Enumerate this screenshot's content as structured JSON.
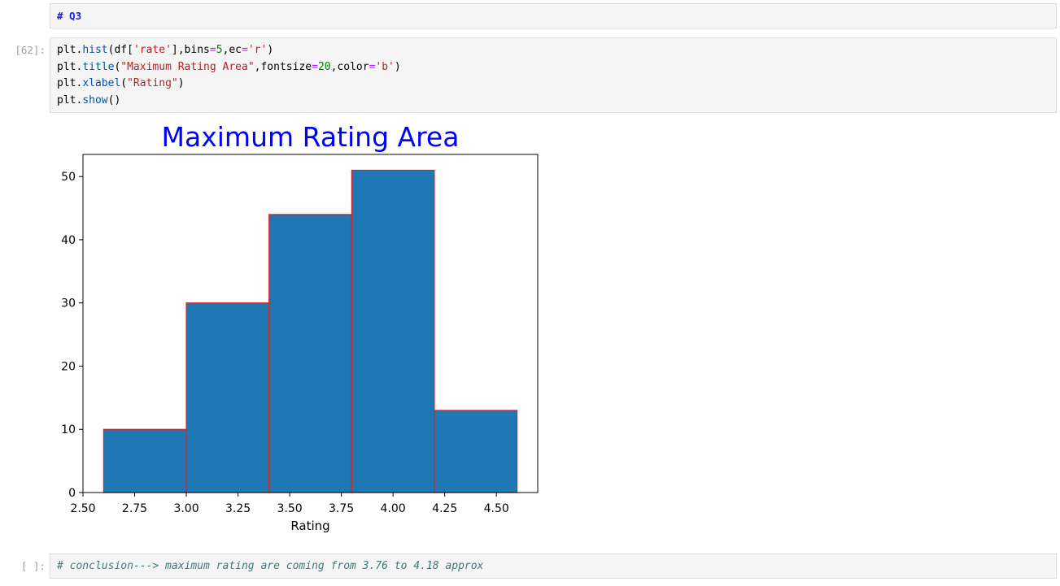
{
  "markdown_cell": {
    "text": "# Q3"
  },
  "code_cell": {
    "prompt": "[62]:",
    "lines": [
      [
        {
          "t": "plt."
        },
        {
          "t": "hist",
          "c": "fn"
        },
        {
          "t": "(df["
        },
        {
          "t": "'rate'",
          "c": "str"
        },
        {
          "t": "],bins"
        },
        {
          "t": "=",
          "c": "op"
        },
        {
          "t": "5",
          "c": "num"
        },
        {
          "t": ",ec"
        },
        {
          "t": "=",
          "c": "op"
        },
        {
          "t": "'r'",
          "c": "str"
        },
        {
          "t": ")"
        }
      ],
      [
        {
          "t": "plt."
        },
        {
          "t": "title",
          "c": "fn"
        },
        {
          "t": "("
        },
        {
          "t": "\"Maximum Rating Area\"",
          "c": "str"
        },
        {
          "t": ",fontsize"
        },
        {
          "t": "=",
          "c": "op"
        },
        {
          "t": "20",
          "c": "num"
        },
        {
          "t": ",color"
        },
        {
          "t": "=",
          "c": "op"
        },
        {
          "t": "'b'",
          "c": "str"
        },
        {
          "t": ")"
        }
      ],
      [
        {
          "t": "plt."
        },
        {
          "t": "xlabel",
          "c": "fn"
        },
        {
          "t": "("
        },
        {
          "t": "\"Rating\"",
          "c": "str"
        },
        {
          "t": ")"
        }
      ],
      [
        {
          "t": "plt."
        },
        {
          "t": "show",
          "c": "fn"
        },
        {
          "t": "()"
        }
      ]
    ]
  },
  "chart_data": {
    "type": "bar",
    "title": "Maximum Rating Area",
    "title_color": "#0000ff",
    "xlabel": "Rating",
    "ylabel": "",
    "bins": [
      [
        2.6,
        3.0
      ],
      [
        3.0,
        3.4
      ],
      [
        3.4,
        3.8
      ],
      [
        3.8,
        4.2
      ],
      [
        4.2,
        4.6
      ]
    ],
    "values": [
      10,
      30,
      44,
      51,
      13
    ],
    "xlim": [
      2.5,
      4.7
    ],
    "ylim": [
      0,
      53.5
    ],
    "xticks": [
      "2.50",
      "2.75",
      "3.00",
      "3.25",
      "3.50",
      "3.75",
      "4.00",
      "4.25",
      "4.50"
    ],
    "yticks": [
      "0",
      "10",
      "20",
      "30",
      "40",
      "50"
    ],
    "bar_color": "#1f77b4",
    "edge_color": "#d62728",
    "grid": false
  },
  "conclusion_cell": {
    "prompt": "[ ]:",
    "text": "# conclusion---> maximum rating are coming from 3.76 to 4.18 approx"
  }
}
